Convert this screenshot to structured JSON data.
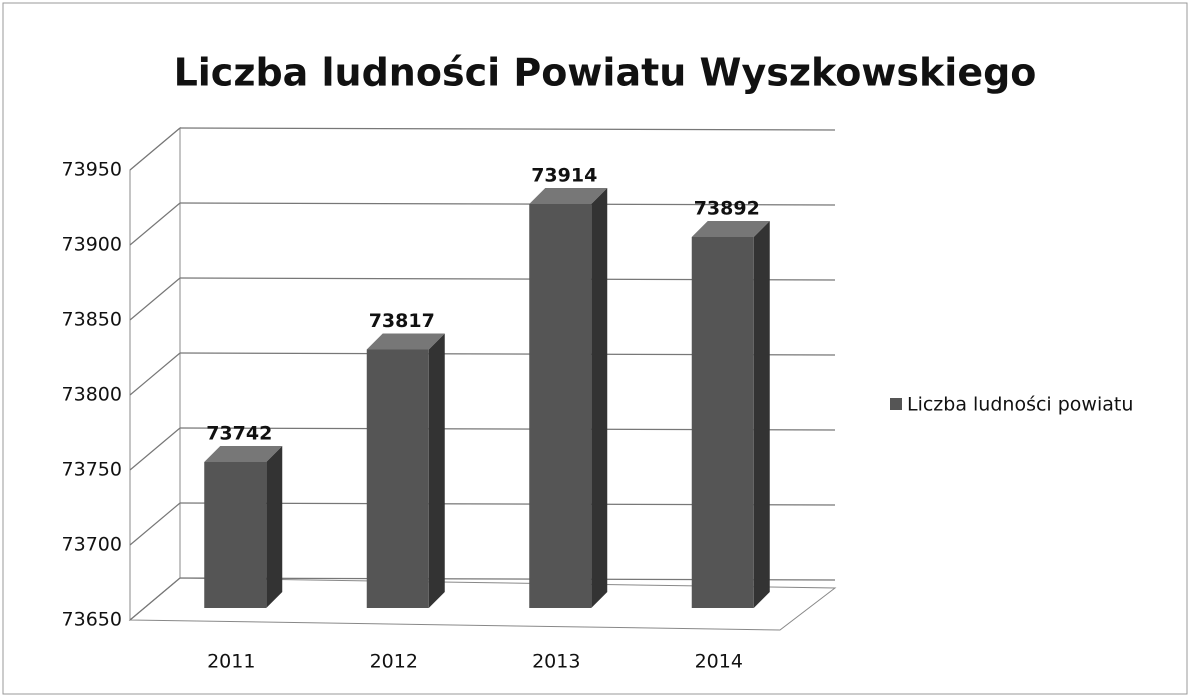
{
  "chart_data": {
    "type": "bar",
    "title": "Liczba ludności Powiatu Wyszkowskiego",
    "categories": [
      "2011",
      "2012",
      "2013",
      "2014"
    ],
    "series": [
      {
        "name": "Liczba ludności powiatu",
        "color": "#555555",
        "values": [
          73742,
          73817,
          73914,
          73892
        ]
      }
    ],
    "ylim": [
      73650,
      73950
    ],
    "yticks": [
      73650,
      73700,
      73750,
      73800,
      73850,
      73900,
      73950
    ],
    "grid": true,
    "legend": "right"
  }
}
